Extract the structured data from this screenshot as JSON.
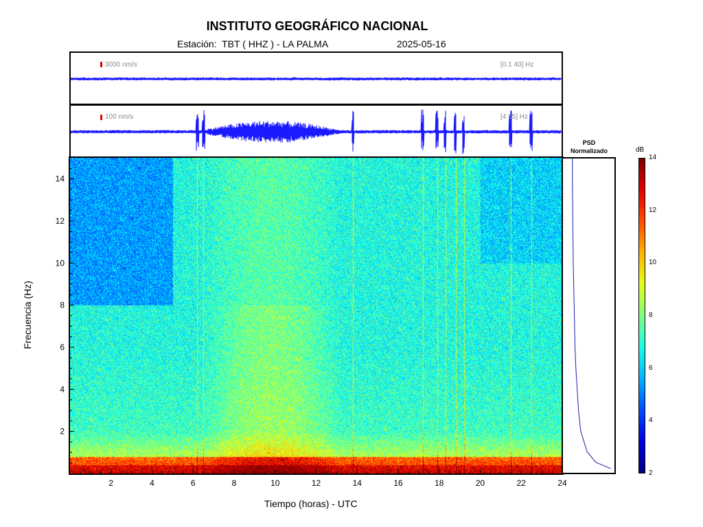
{
  "header": {
    "title": "INSTITUTO GEOGRÁFICO NACIONAL",
    "station_label": "Estación:  TBT ( HHZ ) - LA PALMA",
    "date": "2025-05-16"
  },
  "traces": [
    {
      "scale": "3000 nm/s",
      "band": "[0.1 40] Hz"
    },
    {
      "scale": "100 nm/s",
      "band": "[4 15] Hz"
    }
  ],
  "psd": {
    "title_line1": "PSD",
    "title_line2": "Normalizado"
  },
  "colorbar": {
    "unit": "dB",
    "ticks": [
      "2",
      "4",
      "6",
      "8",
      "10",
      "12",
      "14"
    ]
  },
  "colors": {
    "trace": "#1a1aff",
    "scale_mark": "#e00000"
  },
  "chart_data": {
    "type": "heatmap",
    "xlabel": "Tiempo (horas) - UTC",
    "ylabel": "Frecuencia  (Hz)",
    "xlim": [
      0,
      24
    ],
    "ylim": [
      0,
      15
    ],
    "zlim": [
      2,
      14
    ],
    "x_ticks": [
      "2",
      "4",
      "6",
      "8",
      "10",
      "12",
      "14",
      "16",
      "18",
      "20",
      "22",
      "24"
    ],
    "y_ticks": [
      "2",
      "4",
      "6",
      "8",
      "10",
      "12",
      "14"
    ],
    "colormap": "jet",
    "activity_intervals_hours": [
      [
        6.4,
        13.2
      ]
    ],
    "transient_events_hours": [
      6.2,
      6.5,
      13.8,
      17.2,
      17.9,
      18.3,
      18.8,
      19.2,
      21.5,
      22.5
    ],
    "psd_profile": {
      "frequencies_hz": [
        0.2,
        0.5,
        1,
        2,
        3,
        4,
        5,
        6,
        8,
        10,
        12,
        14,
        15
      ],
      "normalized_power": [
        0.95,
        0.6,
        0.4,
        0.25,
        0.2,
        0.17,
        0.14,
        0.12,
        0.1,
        0.08,
        0.07,
        0.06,
        0.06
      ]
    }
  }
}
